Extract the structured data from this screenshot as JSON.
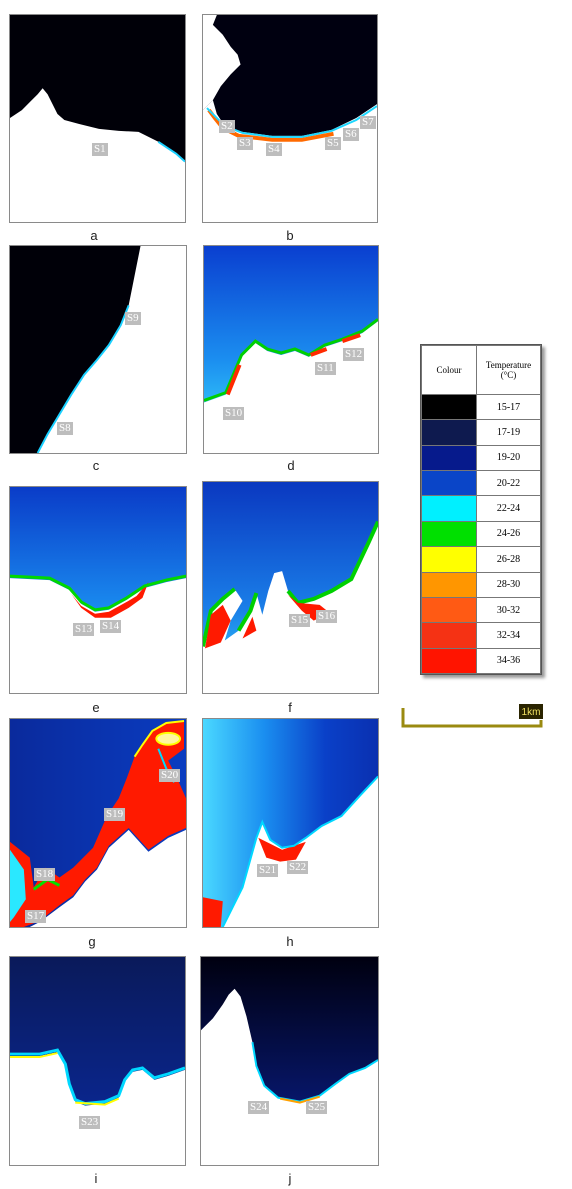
{
  "panels": [
    {
      "label": "a"
    },
    {
      "label": "b"
    },
    {
      "label": "c"
    },
    {
      "label": "d"
    },
    {
      "label": "e"
    },
    {
      "label": "f"
    },
    {
      "label": "g"
    },
    {
      "label": "h"
    },
    {
      "label": "i"
    },
    {
      "label": "j"
    }
  ],
  "stations": [
    "S1",
    "S2",
    "S3",
    "S4",
    "S5",
    "S6",
    "S7",
    "S8",
    "S9",
    "S10",
    "S11",
    "S12",
    "S13",
    "S14",
    "S15",
    "S16",
    "S17",
    "S18",
    "S19",
    "S20",
    "S21",
    "S22",
    "S23",
    "S24",
    "S25"
  ],
  "legend": {
    "col_colour": "Colour",
    "col_temp": "Temperature (°C)",
    "rows": [
      {
        "range": "15-17",
        "color": "#000000"
      },
      {
        "range": "17-19",
        "color": "#0e1a4f"
      },
      {
        "range": "19-20",
        "color": "#061a8c"
      },
      {
        "range": "20-22",
        "color": "#0a45c8"
      },
      {
        "range": "22-24",
        "color": "#00f0ff"
      },
      {
        "range": "24-26",
        "color": "#00e000"
      },
      {
        "range": "26-28",
        "color": "#ffff00"
      },
      {
        "range": "28-30",
        "color": "#ff9600"
      },
      {
        "range": "30-32",
        "color": "#ff5a14"
      },
      {
        "range": "32-34",
        "color": "#f53214"
      },
      {
        "range": "34-36",
        "color": "#ff1400"
      }
    ]
  },
  "scale_bar": {
    "label": "1km"
  }
}
